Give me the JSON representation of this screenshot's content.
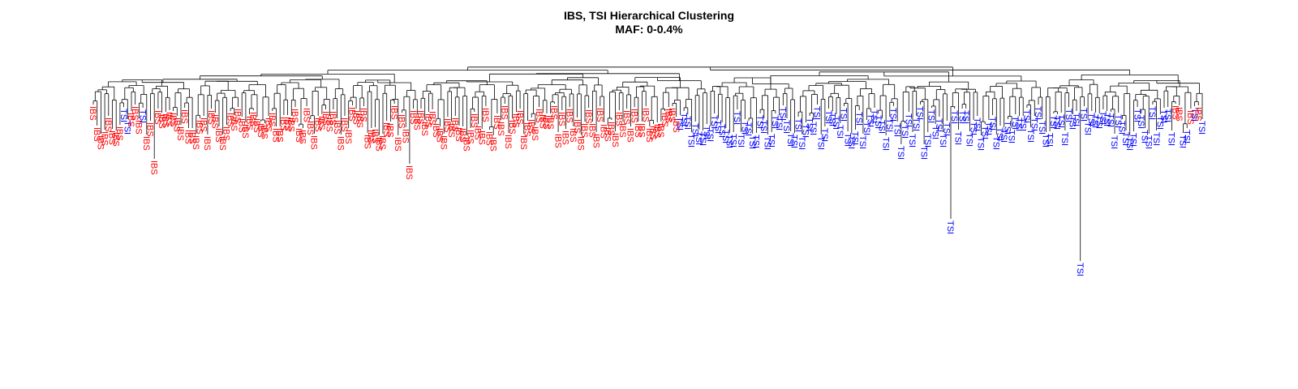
{
  "chart_data": {
    "type": "dendrogram",
    "title": "IBS, TSI Hierarchical Clustering",
    "subtitle": "MAF: 0-0.4%",
    "colors": {
      "IBS": "#ff0000",
      "TSI": "#0000ff",
      "branch": "#000000"
    },
    "groups": [
      {
        "label": "IBS",
        "color": "#ff0000"
      },
      {
        "label": "TSI",
        "color": "#0000ff"
      }
    ],
    "leaves": [
      "IBS",
      "IBS",
      "IBS",
      "IBS",
      "IBS",
      "IBS",
      "IBS",
      "IBS",
      "TSI",
      "TSI",
      "IBS",
      "IBS",
      "IBS",
      "TSI",
      "IBS",
      "IBS",
      "IBS",
      "IBS",
      "IBS",
      "IBS",
      "IBS",
      "IBS",
      "IBS",
      "IBS",
      "IBS",
      "IBS",
      "IBS",
      "IBS",
      "IBS",
      "IBS",
      "IBS",
      "IBS",
      "IBS",
      "IBS",
      "IBS",
      "IBS",
      "IBS",
      "IBS",
      "IBS",
      "IBS",
      "IBS",
      "IBS",
      "IBS",
      "IBS",
      "IBS",
      "IBS",
      "IBS",
      "IBS",
      "IBS",
      "IBS",
      "IBS",
      "IBS",
      "IBS",
      "IBS",
      "IBS",
      "IBS",
      "IBS",
      "IBS",
      "IBS",
      "IBS",
      "IBS",
      "IBS",
      "IBS",
      "IBS",
      "IBS",
      "IBS",
      "IBS",
      "IBS",
      "IBS",
      "IBS",
      "IBS",
      "IBS",
      "IBS",
      "IBS",
      "IBS",
      "IBS",
      "IBS",
      "IBS",
      "IBS",
      "IBS",
      "IBS",
      "IBS",
      "IBS",
      "IBS",
      "IBS",
      "IBS",
      "IBS",
      "IBS",
      "IBS",
      "IBS",
      "IBS",
      "IBS",
      "IBS",
      "IBS",
      "IBS",
      "IBS",
      "IBS",
      "IBS",
      "IBS",
      "IBS",
      "IBS",
      "IBS",
      "IBS",
      "IBS",
      "IBS",
      "IBS",
      "IBS",
      "IBS",
      "IBS",
      "IBS",
      "IBS",
      "IBS",
      "IBS",
      "IBS",
      "IBS",
      "IBS",
      "IBS",
      "IBS",
      "IBS",
      "IBS",
      "IBS",
      "IBS",
      "IBS",
      "IBS",
      "IBS",
      "IBS",
      "IBS",
      "IBS",
      "IBS",
      "IBS",
      "IBS",
      "IBS",
      "IBS",
      "IBS",
      "IBS",
      "IBS",
      "IBS",
      "IBS",
      "IBS",
      "IBS",
      "IBS",
      "IBS",
      "IBS",
      "IBS",
      "IBS",
      "IBS",
      "IBS",
      "IBS",
      "IBS",
      "IBS",
      "IBS",
      "IBS",
      "IBS",
      "IBS",
      "TSI",
      "TSI",
      "TSI",
      "TSI",
      "TSI",
      "TSI",
      "TSI",
      "TSI",
      "TSI",
      "TSI",
      "TSI",
      "TSI",
      "TSI",
      "TSI",
      "TSI",
      "TSI",
      "TSI",
      "TSI",
      "TSI",
      "TSI",
      "TSI",
      "TSI",
      "TSI",
      "TSI",
      "TSI",
      "TSI",
      "TSI",
      "TSI",
      "TSI",
      "TSI",
      "TSI",
      "TSI",
      "TSI",
      "TSI",
      "TSI",
      "TSI",
      "TSI",
      "TSI",
      "TSI",
      "TSI",
      "TSI",
      "TSI",
      "TSI",
      "TSI",
      "TSI",
      "TSI",
      "TSI",
      "TSI",
      "TSI",
      "TSI",
      "TSI",
      "TSI",
      "TSI",
      "TSI",
      "TSI",
      "TSI",
      "TSI",
      "TSI",
      "TSI",
      "TSI",
      "TSI",
      "TSI",
      "TSI",
      "TSI",
      "TSI",
      "TSI",
      "TSI",
      "TSI",
      "TSI",
      "TSI",
      "TSI",
      "TSI",
      "TSI",
      "TSI",
      "TSI",
      "TSI",
      "TSI",
      "TSI",
      "TSI",
      "TSI",
      "TSI",
      "TSI",
      "TSI",
      "TSI",
      "TSI",
      "TSI",
      "TSI",
      "TSI",
      "TSI",
      "TSI",
      "TSI",
      "TSI",
      "TSI",
      "TSI",
      "TSI",
      "TSI",
      "TSI",
      "TSI",
      "TSI",
      "TSI",
      "TSI",
      "TSI",
      "TSI",
      "TSI",
      "TSI",
      "TSI",
      "TSI",
      "TSI",
      "TSI",
      "TSI",
      "TSI",
      "TSI",
      "TSI",
      "TSI",
      "TSI",
      "TSI",
      "TSI",
      "TSI",
      "TSI",
      "TSI",
      "TSI",
      "TSI",
      "TSI",
      "TSI",
      "TSI",
      "TSI",
      "TSI",
      "TSI",
      "TSI",
      "TSI",
      "IBS",
      "IBS",
      "TSI",
      "TSI",
      "IBS",
      "TSI",
      "IBS",
      "TSI"
    ]
  }
}
